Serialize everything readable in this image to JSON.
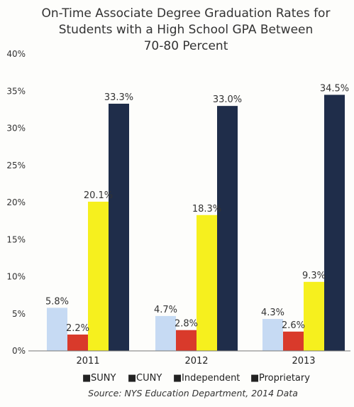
{
  "chart_data": {
    "type": "bar",
    "title_lines": [
      "On-Time Associate Degree Graduation Rates for",
      "Students with a High School GPA Between",
      "70-80 Percent"
    ],
    "categories": [
      "2011",
      "2012",
      "2013"
    ],
    "series": [
      {
        "name": "SUNY",
        "color": "#c6daf3",
        "values": [
          5.8,
          4.7,
          4.3
        ],
        "labels": [
          "5.8%",
          "4.7%",
          "4.3%"
        ]
      },
      {
        "name": "CUNY",
        "color": "#d93a2b",
        "values": [
          2.2,
          2.8,
          2.6
        ],
        "labels": [
          "2.2%",
          "2.8%",
          "2.6%"
        ]
      },
      {
        "name": "Independent",
        "color": "#f6f01e",
        "values": [
          20.1,
          18.3,
          9.3
        ],
        "labels": [
          "20.1%",
          "18.3%",
          "9.3%"
        ]
      },
      {
        "name": "Proprietary",
        "color": "#1f2d4a",
        "values": [
          33.3,
          33.0,
          34.5
        ],
        "labels": [
          "33.3%",
          "33.0%",
          "34.5%"
        ]
      }
    ],
    "ylim": [
      0,
      40
    ],
    "yticks": [
      0,
      5,
      10,
      15,
      20,
      25,
      30,
      35,
      40
    ],
    "ytick_labels": [
      "0%",
      "5%",
      "10%",
      "15%",
      "20%",
      "25%",
      "30%",
      "35%",
      "40%"
    ],
    "xlabel": "",
    "ylabel": "",
    "grid": false,
    "legend_position": "bottom",
    "legend_marker": "■",
    "source": "Source: NYS Education Department, 2014 Data"
  }
}
